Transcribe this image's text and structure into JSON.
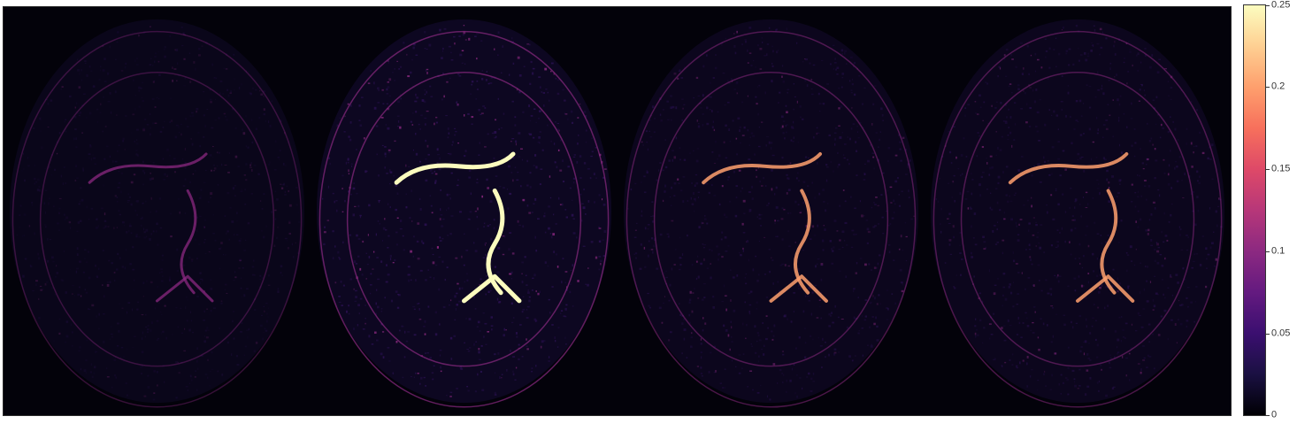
{
  "colorbar": {
    "min": 0,
    "max": 0.25,
    "colormap": "magma",
    "ticks": [
      "0",
      "0.05",
      "0.1",
      "0.15",
      "0.2",
      "0.25"
    ],
    "tick_values": [
      0,
      0.05,
      0.1,
      0.15,
      0.2,
      0.25
    ]
  },
  "panels": [
    {
      "intensity": "low"
    },
    {
      "intensity": "high"
    },
    {
      "intensity": "medium"
    },
    {
      "intensity": "medium"
    }
  ],
  "colors": {
    "background": "#03020a",
    "low": "#2a1150",
    "mid": "#8c2981",
    "high": "#fe9f6d",
    "peak": "#fcfdbf"
  }
}
